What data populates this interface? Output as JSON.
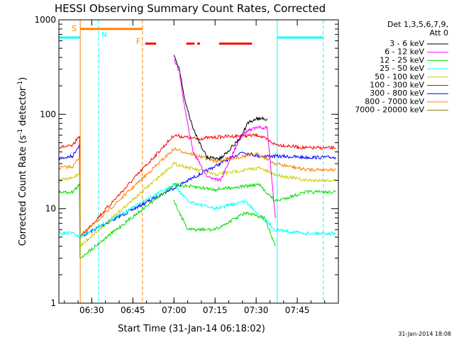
{
  "chart_data": {
    "type": "line",
    "title": "HESSI Observing Summary Count Rates, Corrected",
    "xlabel": "Start Time (31-Jan-14 06:18:02)",
    "ylabel_main": "Corrected Count Rate (s",
    "ylabel_sup1": "-1",
    "ylabel_mid": " detector",
    "ylabel_sup2": "-1",
    "ylabel_end": ")",
    "x_unit": "minutes after 06:18:02",
    "xlim": [
      0,
      102
    ],
    "ylim": [
      1,
      1000
    ],
    "yscale": "log",
    "xticks": [
      {
        "label": "06:30",
        "x": 12
      },
      {
        "label": "06:45",
        "x": 27
      },
      {
        "label": "07:00",
        "x": 42
      },
      {
        "label": "07:15",
        "x": 57
      },
      {
        "label": "07:30",
        "x": 72
      },
      {
        "label": "07:45",
        "x": 87
      }
    ],
    "yticks": [
      {
        "label": "1",
        "y": 1
      },
      {
        "label": "10",
        "y": 10
      },
      {
        "label": "100",
        "y": 100
      },
      {
        "label": "1000",
        "y": 1000
      }
    ],
    "legend": {
      "header1": "Det 1,3,5,6,7,9,",
      "header2": "Att 0",
      "position": "top-right outside",
      "entries": [
        {
          "label": "3 - 6 keV",
          "color": "#000000"
        },
        {
          "label": "6 - 12 keV",
          "color": "#ff00ff"
        },
        {
          "label": "12 - 25 keV",
          "color": "#00dd00"
        },
        {
          "label": "25 - 50 keV",
          "color": "#00ffff"
        },
        {
          "label": "50 - 100 keV",
          "color": "#cccc00"
        },
        {
          "label": "100 - 300 keV",
          "color": "#ff0000"
        },
        {
          "label": "300 - 800 keV",
          "color": "#0000ff"
        },
        {
          "label": "800 - 7000 keV",
          "color": "#ff8000"
        },
        {
          "label": "7000 - 20000 keV",
          "color": "#808000"
        }
      ]
    },
    "annotations": {
      "saa_label": "S",
      "night_label": "N",
      "flare_label": "F",
      "timestamp": "31-Jan-2014 18:08"
    },
    "series": [
      {
        "color": "#0000ff",
        "values": [
          [
            0,
            34
          ],
          [
            5,
            36
          ],
          [
            7.5,
            48
          ],
          [
            7.7,
            5
          ],
          [
            67,
            40
          ],
          [
            73,
            36
          ],
          [
            79,
            36
          ],
          [
            90,
            35
          ],
          [
            101,
            35
          ]
        ]
      },
      {
        "color": "#ff0000",
        "values": [
          [
            0,
            45
          ],
          [
            5,
            46
          ],
          [
            7.5,
            60
          ],
          [
            7.7,
            5
          ],
          [
            42,
            60
          ],
          [
            50,
            55
          ],
          [
            60,
            58
          ],
          [
            73,
            60
          ],
          [
            79,
            48
          ],
          [
            90,
            44
          ],
          [
            101,
            44
          ]
        ]
      },
      {
        "color": "#ff8000",
        "values": [
          [
            0,
            27
          ],
          [
            5,
            28
          ],
          [
            7.5,
            35
          ],
          [
            7.7,
            5
          ],
          [
            42,
            43
          ],
          [
            57,
            32
          ],
          [
            73,
            38
          ],
          [
            79,
            30
          ],
          [
            90,
            26
          ],
          [
            101,
            26
          ]
        ]
      },
      {
        "color": "#cccc00",
        "values": [
          [
            0,
            20
          ],
          [
            5,
            21
          ],
          [
            7.5,
            24
          ],
          [
            7.7,
            4
          ],
          [
            42,
            30
          ],
          [
            57,
            23
          ],
          [
            73,
            27
          ],
          [
            79,
            23
          ],
          [
            90,
            20
          ],
          [
            101,
            20
          ]
        ]
      },
      {
        "color": "#00dd00",
        "values": [
          [
            0,
            15
          ],
          [
            5,
            15
          ],
          [
            7.5,
            18
          ],
          [
            7.7,
            3
          ],
          [
            42,
            18
          ],
          [
            57,
            16
          ],
          [
            73,
            18
          ],
          [
            79,
            12
          ],
          [
            90,
            15
          ],
          [
            101,
            15
          ]
        ]
      },
      {
        "color": "#00ffff",
        "values": [
          [
            0,
            5.5
          ],
          [
            5,
            5.5
          ],
          [
            7.7,
            5
          ],
          [
            42,
            18
          ],
          [
            47,
            12
          ],
          [
            57,
            10
          ],
          [
            68,
            12
          ],
          [
            79,
            6
          ],
          [
            90,
            5.5
          ],
          [
            101,
            5.5
          ]
        ]
      },
      {
        "color": "#00dd00",
        "values": [
          [
            42,
            12
          ],
          [
            47,
            6
          ],
          [
            57,
            6
          ],
          [
            68,
            9
          ],
          [
            75,
            8
          ],
          [
            79,
            4
          ]
        ]
      },
      {
        "color": "#000000",
        "values": [
          [
            42,
            430
          ],
          [
            44,
            300
          ],
          [
            46,
            140
          ],
          [
            49,
            70
          ],
          [
            54,
            35
          ],
          [
            59,
            34
          ],
          [
            66,
            55
          ],
          [
            69,
            80
          ],
          [
            72,
            90
          ],
          [
            76,
            90
          ]
        ]
      },
      {
        "color": "#ff00ff",
        "values": [
          [
            42,
            380
          ],
          [
            44,
            280
          ],
          [
            46,
            110
          ],
          [
            49,
            40
          ],
          [
            54,
            22
          ],
          [
            59,
            20
          ],
          [
            66,
            55
          ],
          [
            69,
            68
          ],
          [
            72,
            72
          ],
          [
            76,
            72
          ],
          [
            79,
            8
          ]
        ]
      }
    ]
  }
}
